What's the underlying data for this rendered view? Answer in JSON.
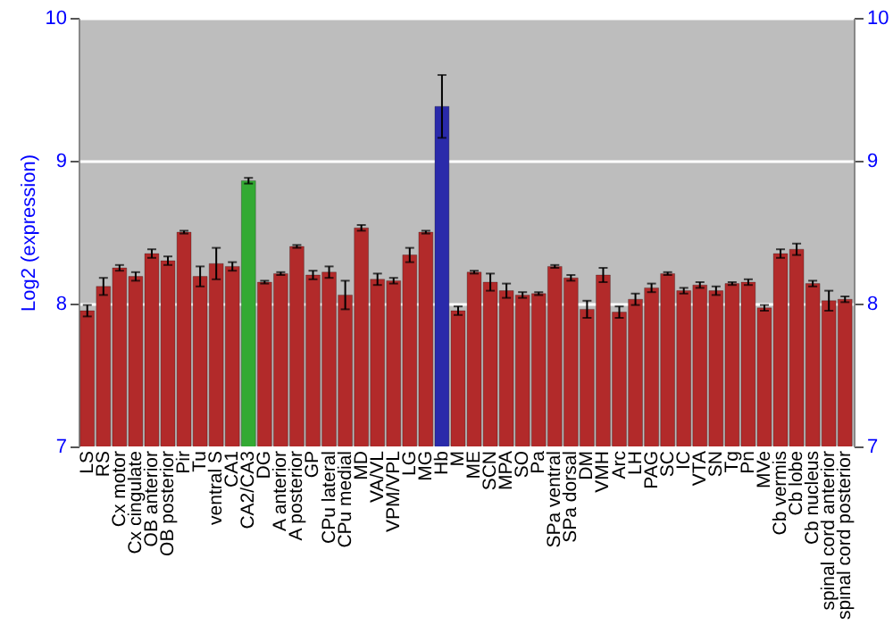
{
  "chart_data": {
    "type": "bar",
    "ylabel": "Log2 (expression)",
    "categories": [
      "LS",
      "RS",
      "Cx motor",
      "Cx cingulate",
      "OB anterior",
      "OB posterior",
      "Pir",
      "Tu",
      "ventral S",
      "CA1",
      "CA2/CA3",
      "DG",
      "A anterior",
      "A posterior",
      "GP",
      "CPu lateral",
      "CPu medial",
      "MD",
      "VA/VL",
      "VPM/VPL",
      "LG",
      "MG",
      "Hb",
      "M",
      "ME",
      "SCN",
      "MPA",
      "SO",
      "Pa",
      "SPa ventral",
      "SPa dorsal",
      "DM",
      "VMH",
      "Arc",
      "LH",
      "PAG",
      "SC",
      "IC",
      "VTA",
      "SN",
      "Tg",
      "Pn",
      "MVe",
      "Cb vermis",
      "Cb lobe",
      "Cb nucleus",
      "spinal cord anterior",
      "spinal cord posterior"
    ],
    "values": [
      7.95,
      8.12,
      8.25,
      8.19,
      8.35,
      8.3,
      8.5,
      8.19,
      8.28,
      8.26,
      8.86,
      8.15,
      8.21,
      8.4,
      8.2,
      8.22,
      8.06,
      8.53,
      8.17,
      8.16,
      8.34,
      8.5,
      9.38,
      7.95,
      8.22,
      8.15,
      8.09,
      8.06,
      8.07,
      8.26,
      8.18,
      7.96,
      8.2,
      7.94,
      8.03,
      8.11,
      8.21,
      8.09,
      8.13,
      8.09,
      8.14,
      8.15,
      7.97,
      8.35,
      8.38,
      8.14,
      8.02,
      8.03
    ],
    "errors": [
      0.04,
      0.06,
      0.02,
      0.03,
      0.03,
      0.03,
      0.01,
      0.07,
      0.11,
      0.03,
      0.02,
      0.01,
      0.01,
      0.01,
      0.03,
      0.04,
      0.1,
      0.02,
      0.04,
      0.02,
      0.05,
      0.01,
      0.22,
      0.03,
      0.01,
      0.06,
      0.05,
      0.02,
      0.01,
      0.01,
      0.02,
      0.06,
      0.05,
      0.04,
      0.04,
      0.03,
      0.01,
      0.02,
      0.02,
      0.03,
      0.01,
      0.02,
      0.02,
      0.03,
      0.04,
      0.02,
      0.07,
      0.02
    ],
    "colors": [
      "#b22a2a",
      "#b22a2a",
      "#b22a2a",
      "#b22a2a",
      "#b22a2a",
      "#b22a2a",
      "#b22a2a",
      "#b22a2a",
      "#b22a2a",
      "#b22a2a",
      "#33aa33",
      "#b22a2a",
      "#b22a2a",
      "#b22a2a",
      "#b22a2a",
      "#b22a2a",
      "#b22a2a",
      "#b22a2a",
      "#b22a2a",
      "#b22a2a",
      "#b22a2a",
      "#b22a2a",
      "#2a2aaa",
      "#b22a2a",
      "#b22a2a",
      "#b22a2a",
      "#b22a2a",
      "#b22a2a",
      "#b22a2a",
      "#b22a2a",
      "#b22a2a",
      "#b22a2a",
      "#b22a2a",
      "#b22a2a",
      "#b22a2a",
      "#b22a2a",
      "#b22a2a",
      "#b22a2a",
      "#b22a2a",
      "#b22a2a",
      "#b22a2a",
      "#b22a2a",
      "#b22a2a",
      "#b22a2a",
      "#b22a2a",
      "#b22a2a",
      "#b22a2a",
      "#b22a2a"
    ],
    "ylim": [
      7,
      10
    ],
    "yticks": [
      7,
      8,
      9,
      10
    ],
    "y2lim": [
      7,
      10
    ],
    "y2ticks": [
      7,
      8,
      9,
      10
    ],
    "grid": "y"
  }
}
